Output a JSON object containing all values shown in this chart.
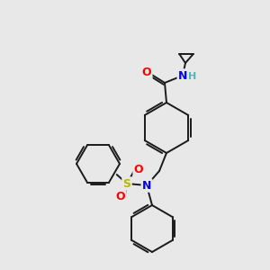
{
  "bg_color": "#e8e8e8",
  "bond_color": "#1a1a1a",
  "atom_colors": {
    "O": "#ff0000",
    "N": "#0000ff",
    "S": "#b8b800",
    "H": "#4db8b8",
    "C": "#1a1a1a"
  },
  "font_size": 8.5,
  "line_width": 1.4,
  "fig_size": [
    3.0,
    3.0
  ],
  "dpi": 100
}
